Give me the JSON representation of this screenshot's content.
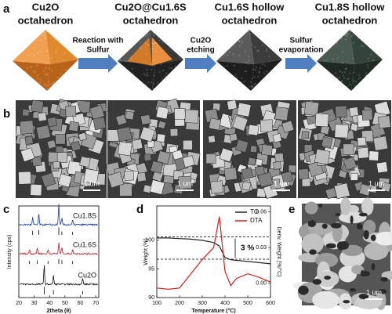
{
  "panel_a": {
    "label": "a",
    "stages": [
      {
        "name": "Cu2O",
        "shape": "octahedron"
      },
      {
        "name": "Cu2O@Cu1.6S",
        "shape": "octahedron"
      },
      {
        "name": "Cu1.6S  hollow",
        "shape": "octahedron"
      },
      {
        "name": "Cu1.8S hollow",
        "shape": "octahedron"
      }
    ],
    "steps": [
      [
        "Reaction with",
        "Sulfur"
      ],
      [
        "Cu2O",
        "etching"
      ],
      [
        "Sulfur",
        "evaporation"
      ]
    ]
  },
  "panel_b": {
    "label": "b",
    "scale_bars": [
      "1 um",
      "1 um",
      "1 um",
      "1 um"
    ]
  },
  "panel_c": {
    "label": "c",
    "traces": [
      "Cu1.8S",
      "Cu1.6S",
      "Cu2O"
    ],
    "y_label": "Intensity (cps)",
    "x_label": "2theta (θ)",
    "xlim": [
      20,
      72
    ],
    "xticks": [
      20,
      30,
      40,
      50,
      60,
      70
    ]
  },
  "chart_data": {
    "type": "line",
    "label": "d",
    "x_label": "Temperature (°C)",
    "y_label": "Weight (%)",
    "y2_label": "Deriv. Weight (%/°C)",
    "annotation": "3 %",
    "x": [
      100,
      150,
      200,
      250,
      300,
      350,
      375,
      400,
      425,
      450,
      500,
      550,
      600
    ],
    "series": [
      {
        "name": "TG",
        "color": "#222222",
        "values": [
          100.4,
          100.4,
          100.3,
          100.2,
          100.0,
          99.6,
          99.0,
          97.0,
          96.6,
          96.5,
          96.3,
          96.1,
          95.9
        ]
      },
      {
        "name": "DTA",
        "color": "#d62020",
        "axis": "y2",
        "values": [
          -0.004,
          -0.005,
          -0.004,
          0.008,
          0.02,
          0.03,
          0.056,
          0.01,
          -0.002,
          0.004,
          0.008,
          0.005,
          0.001
        ]
      }
    ],
    "xlim": [
      100,
      600
    ],
    "xticks": [
      100,
      200,
      300,
      400,
      500,
      600
    ],
    "ylim": [
      90,
      106
    ],
    "yticks": [
      90,
      95,
      100
    ],
    "y2lim": [
      -0.012,
      0.065
    ],
    "y2ticks": [
      {
        "value": 0,
        "label": "0.00"
      },
      {
        "value": 0.03,
        "label": "0.03"
      },
      {
        "value": 0.06,
        "label": "0.06"
      }
    ],
    "legend": "upper right"
  },
  "panel_e": {
    "label": "e",
    "scale_bar": "1 um"
  }
}
